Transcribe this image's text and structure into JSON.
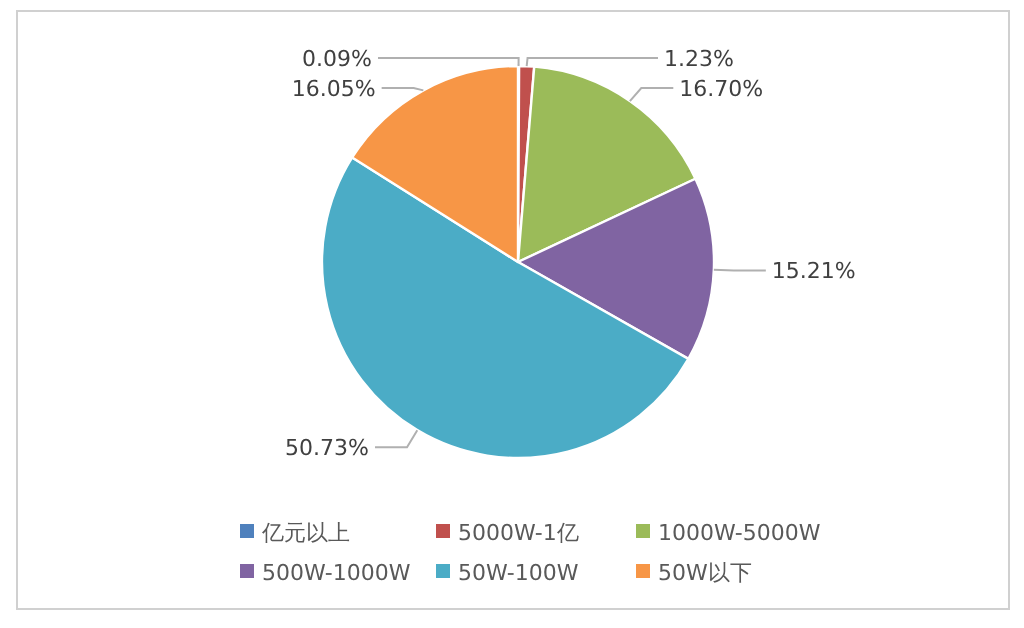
{
  "chart_data": {
    "type": "pie",
    "categories": [
      "亿元以上",
      "5000W-1亿",
      "1000W-5000W",
      "500W-1000W",
      "50W-100W",
      "50W以下"
    ],
    "values": [
      0.09,
      1.23,
      16.7,
      15.21,
      50.73,
      16.05
    ],
    "colors": [
      "#4f81bd",
      "#c0504d",
      "#9bbb59",
      "#8064a2",
      "#4bacc6",
      "#f79646"
    ],
    "value_labels": [
      "0.09%",
      "1.23%",
      "16.70%",
      "15.21%",
      "50.73%",
      "16.05%"
    ],
    "legend": "bottom"
  }
}
